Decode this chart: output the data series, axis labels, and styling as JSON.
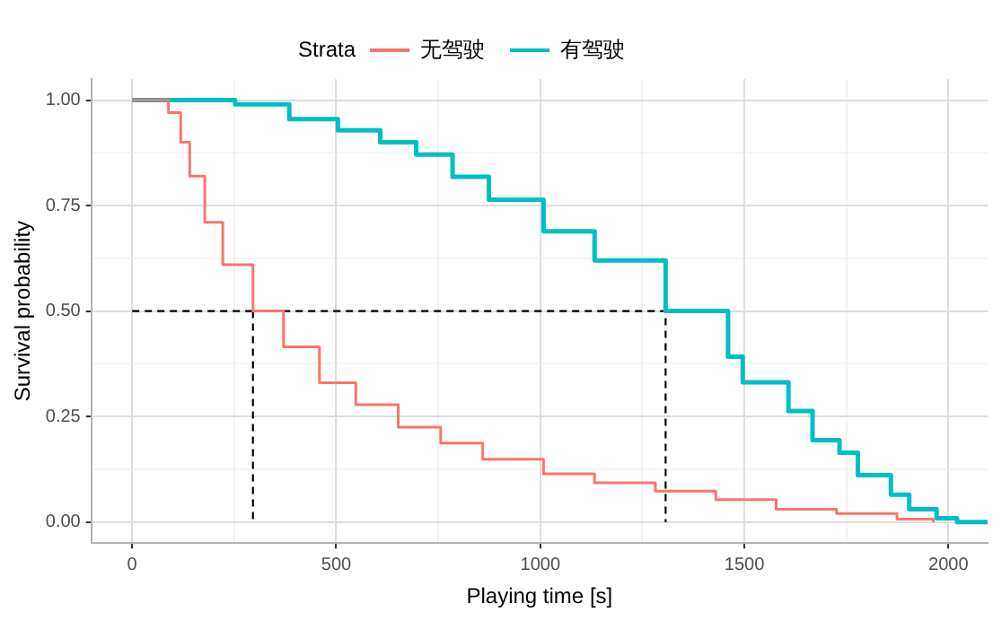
{
  "chart_data": {
    "type": "step",
    "xlabel": "Playing time [s]",
    "ylabel": "Survival probability",
    "legend_title": "Strata",
    "series": [
      {
        "name": "无驾驶",
        "color": "#f8766d",
        "x": [
          0,
          82,
          89,
          119,
          141,
          178,
          222,
          296,
          371,
          459,
          548,
          652,
          756,
          859,
          1008,
          1133,
          1282,
          1430,
          1578,
          1726,
          1874,
          1963
        ],
        "values": [
          1,
          1,
          0.97,
          0.9,
          0.82,
          0.71,
          0.61,
          0.5,
          0.415,
          0.33,
          0.278,
          0.225,
          0.187,
          0.149,
          0.114,
          0.093,
          0.073,
          0.053,
          0.03,
          0.02,
          0.007,
          0
        ]
      },
      {
        "name": "有驾驶",
        "color": "#00bfc4",
        "x": [
          0,
          141,
          252,
          385,
          504,
          608,
          696,
          785,
          874,
          1008,
          1133,
          1307,
          1460,
          1496,
          1608,
          1667,
          1733,
          1778,
          1859,
          1904,
          1971,
          2021,
          2096
        ],
        "values": [
          1,
          1,
          0.99,
          0.955,
          0.928,
          0.9,
          0.871,
          0.818,
          0.764,
          0.689,
          0.62,
          0.5,
          0.392,
          0.331,
          0.263,
          0.194,
          0.164,
          0.111,
          0.065,
          0.03,
          0.009,
          0,
          0
        ]
      },
      {
        "type": "line",
        "color": "#000000",
        "line_style": "dashed",
        "x": [
          0,
          1307,
          1307
        ],
        "values": [
          0.5,
          0.5,
          0
        ]
      },
      {
        "type": "line",
        "color": "#000000",
        "line_style": "dashed",
        "x": [
          296,
          296
        ],
        "values": [
          0.5,
          0
        ]
      }
    ],
    "xlim": [
      -100,
      2096
    ],
    "ylim": [
      -0.05,
      1.05
    ],
    "xticks": [
      0,
      {
        "value": 250,
        "label": null
      },
      500,
      {
        "value": 750,
        "label": null
      },
      1000,
      {
        "value": 1250,
        "label": null
      },
      1500,
      {
        "value": 1750,
        "label": null
      },
      2000
    ],
    "yticks": [
      {
        "value": 0,
        "label": "0.00"
      },
      {
        "value": 0.125,
        "label": null
      },
      {
        "value": 0.25,
        "label": "0.25"
      },
      {
        "value": 0.375,
        "label": null
      },
      {
        "value": 0.5,
        "label": "0.50"
      },
      {
        "value": 0.625,
        "label": null
      },
      {
        "value": 0.75,
        "label": "0.75"
      },
      {
        "value": 0.875,
        "label": null
      },
      {
        "value": 1,
        "label": "1.00"
      }
    ],
    "grid": true,
    "legend": "top",
    "marker": "none",
    "line_style": "solid"
  }
}
